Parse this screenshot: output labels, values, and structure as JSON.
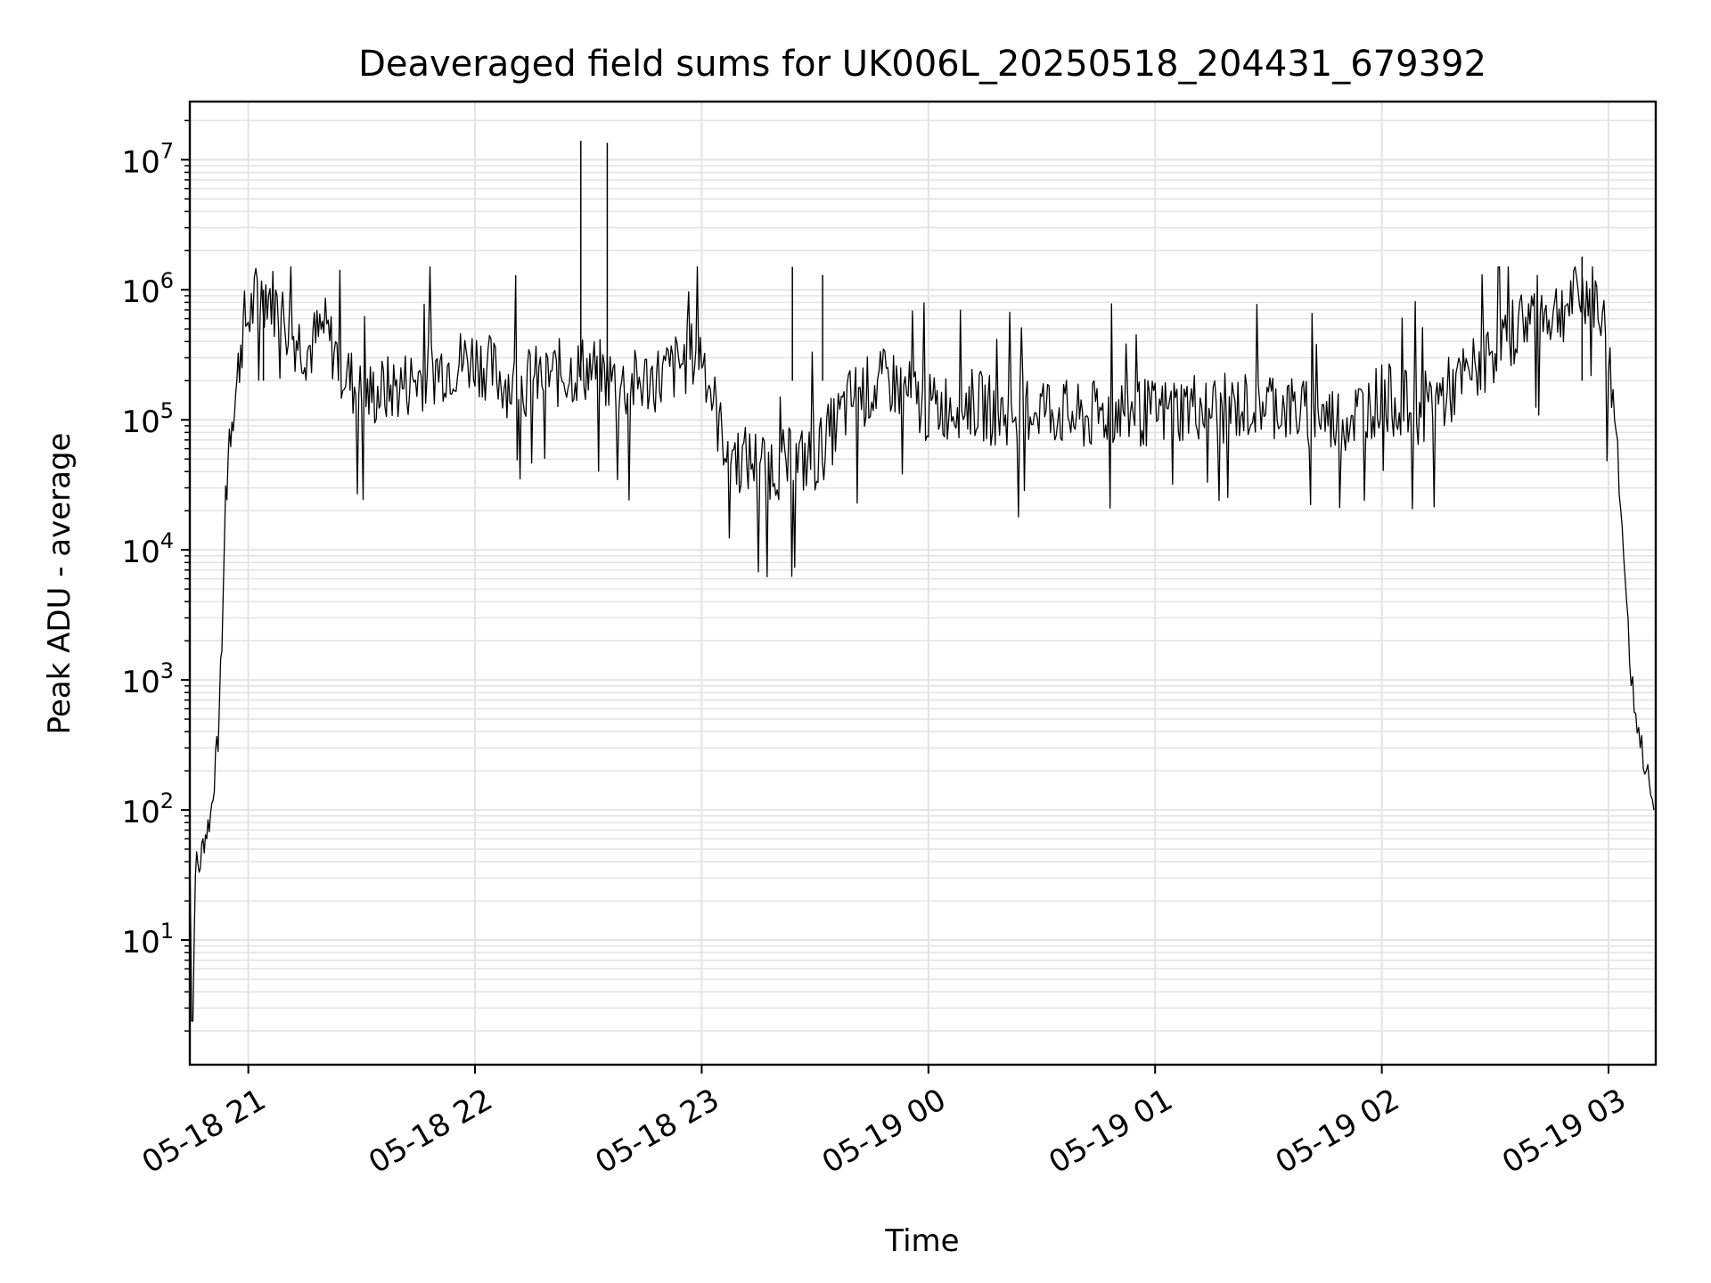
{
  "chart_data": {
    "type": "line",
    "title": "Deaveraged field sums for UK006L_20250518_204431_679392",
    "xlabel": "Time",
    "ylabel": "Peak ADU - average",
    "y_scale": "log",
    "ylim": [
      1.1,
      28000000
    ],
    "xlim": [
      "2025-05-18 20:44:31",
      "2025-05-19 03:12:30"
    ],
    "grid": true,
    "x_ticks": [
      {
        "t": "2025-05-18 21:00",
        "label": "05-18 21"
      },
      {
        "t": "2025-05-18 22:00",
        "label": "05-18 22"
      },
      {
        "t": "2025-05-18 23:00",
        "label": "05-18 23"
      },
      {
        "t": "2025-05-19 00:00",
        "label": "05-19 00"
      },
      {
        "t": "2025-05-19 01:00",
        "label": "05-19 01"
      },
      {
        "t": "2025-05-19 02:00",
        "label": "05-19 02"
      },
      {
        "t": "2025-05-19 03:00",
        "label": "05-19 03"
      }
    ],
    "y_ticks": [
      {
        "value": 10,
        "base": "10",
        "exp": "1"
      },
      {
        "value": 100,
        "base": "10",
        "exp": "2"
      },
      {
        "value": 1000,
        "base": "10",
        "exp": "3"
      },
      {
        "value": 10000,
        "base": "10",
        "exp": "4"
      },
      {
        "value": 100000,
        "base": "10",
        "exp": "5"
      },
      {
        "value": 1000000,
        "base": "10",
        "exp": "6"
      },
      {
        "value": 10000000,
        "base": "10",
        "exp": "7"
      }
    ],
    "series": [
      {
        "color": "#000000",
        "points": [
          [
            "2025-05-18 20:44:31",
            50
          ],
          [
            "2025-05-18 20:45:00",
            3
          ],
          [
            "2025-05-18 20:45:20",
            2.5
          ],
          [
            "2025-05-18 20:46:00",
            40
          ],
          [
            "2025-05-18 20:47:00",
            35
          ],
          [
            "2025-05-18 20:48:00",
            55
          ],
          [
            "2025-05-18 20:49:00",
            70
          ],
          [
            "2025-05-18 20:50:00",
            90
          ],
          [
            "2025-05-18 20:51:00",
            180
          ],
          [
            "2025-05-18 20:52:00",
            350
          ],
          [
            "2025-05-18 20:53:00",
            2000
          ],
          [
            "2025-05-18 20:54:00",
            25000
          ],
          [
            "2025-05-18 20:55:00",
            80000
          ],
          [
            "2025-05-18 20:56:00",
            140000
          ],
          [
            "2025-05-18 20:57:00",
            180000
          ],
          [
            "2025-05-18 20:58:00",
            400000
          ],
          [
            "2025-05-18 20:59:00",
            550000
          ],
          [
            "2025-05-18 21:00:00",
            600000
          ],
          [
            "2025-05-18 21:02:00",
            850000
          ],
          [
            "2025-05-18 21:05:00",
            1000000
          ],
          [
            "2025-05-18 21:08:00",
            700000
          ],
          [
            "2025-05-18 21:12:00",
            450000
          ],
          [
            "2025-05-18 21:16:00",
            350000
          ],
          [
            "2025-05-18 21:20:00",
            500000
          ],
          [
            "2025-05-18 21:25:00",
            250000
          ],
          [
            "2025-05-18 21:30:00",
            150000
          ],
          [
            "2025-05-18 21:40:00",
            180000
          ],
          [
            "2025-05-18 21:50:00",
            250000
          ],
          [
            "2025-05-18 22:00:00",
            300000
          ],
          [
            "2025-05-18 22:10:00",
            180000
          ],
          [
            "2025-05-18 22:20:00",
            220000
          ],
          [
            "2025-05-18 22:30:00",
            250000
          ],
          [
            "2025-05-18 22:40:00",
            180000
          ],
          [
            "2025-05-18 22:50:00",
            220000
          ],
          [
            "2025-05-18 23:00:00",
            350000
          ],
          [
            "2025-05-18 23:05:00",
            80000
          ],
          [
            "2025-05-18 23:10:00",
            50000
          ],
          [
            "2025-05-18 23:20:00",
            45000
          ],
          [
            "2025-05-18 23:30:00",
            50000
          ],
          [
            "2025-05-18 23:40:00",
            150000
          ],
          [
            "2025-05-18 23:50:00",
            200000
          ],
          [
            "2025-05-19 00:00:00",
            120000
          ],
          [
            "2025-05-19 00:10:00",
            140000
          ],
          [
            "2025-05-19 00:20:00",
            110000
          ],
          [
            "2025-05-19 00:30:00",
            130000
          ],
          [
            "2025-05-19 00:40:00",
            100000
          ],
          [
            "2025-05-19 00:50:00",
            120000
          ],
          [
            "2025-05-19 01:00:00",
            110000
          ],
          [
            "2025-05-19 01:10:00",
            130000
          ],
          [
            "2025-05-19 01:20:00",
            120000
          ],
          [
            "2025-05-19 01:30:00",
            140000
          ],
          [
            "2025-05-19 01:40:00",
            110000
          ],
          [
            "2025-05-19 01:50:00",
            100000
          ],
          [
            "2025-05-19 02:00:00",
            150000
          ],
          [
            "2025-05-19 02:10:00",
            120000
          ],
          [
            "2025-05-19 02:20:00",
            180000
          ],
          [
            "2025-05-19 02:30:00",
            350000
          ],
          [
            "2025-05-19 02:35:00",
            500000
          ],
          [
            "2025-05-19 02:40:00",
            700000
          ],
          [
            "2025-05-19 02:45:00",
            650000
          ],
          [
            "2025-05-19 02:50:00",
            800000
          ],
          [
            "2025-05-19 02:55:00",
            1000000
          ],
          [
            "2025-05-19 02:58:00",
            700000
          ],
          [
            "2025-05-19 03:00:00",
            300000
          ],
          [
            "2025-05-19 03:02:00",
            80000
          ],
          [
            "2025-05-19 03:04:00",
            10000
          ],
          [
            "2025-05-19 03:06:00",
            1000
          ],
          [
            "2025-05-19 03:08:00",
            400
          ],
          [
            "2025-05-19 03:10:00",
            200
          ],
          [
            "2025-05-19 03:12:00",
            100
          ]
        ],
        "spikes": [
          [
            "2025-05-18 22:28:00",
            14000000
          ],
          [
            "2025-05-18 22:35:00",
            13500000
          ],
          [
            "2025-05-19 02:53:00",
            1800000
          ],
          [
            "2025-05-18 23:24:00",
            1500000
          ],
          [
            "2025-05-18 23:32:00",
            1300000
          ],
          [
            "2025-05-18 21:04:00",
            1000000
          ]
        ]
      }
    ]
  }
}
